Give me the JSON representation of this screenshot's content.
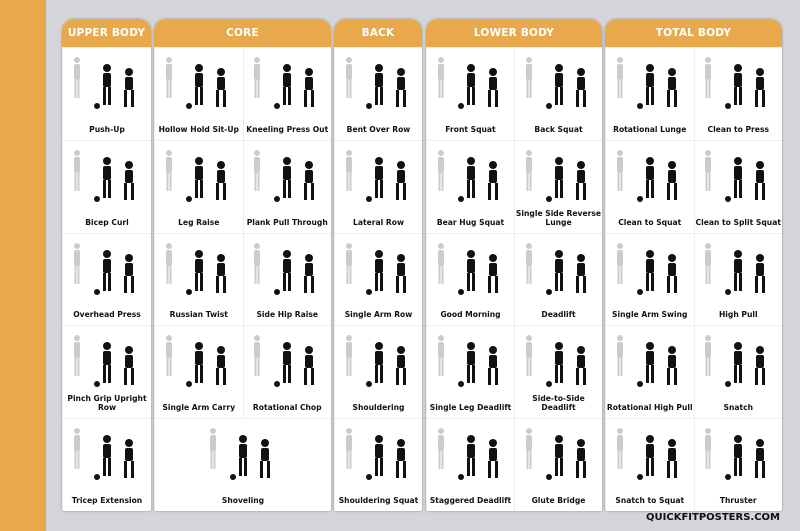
{
  "brand": "QUICKFITPOSTERS.COM",
  "colors": {
    "accent": "#e8a94c",
    "background": "#d4d5d9"
  },
  "sections": [
    {
      "title": "UPPER BODY",
      "cols": 1,
      "exercises": [
        "Push-Up",
        "Bicep Curl",
        "Overhead Press",
        "Pinch Grip Upright Row",
        "Tricep Extension"
      ]
    },
    {
      "title": "CORE",
      "cols": 2,
      "exercises": [
        "Hollow Hold Sit-Up",
        "Kneeling Press Out",
        "Leg Raise",
        "Plank Pull Through",
        "Russian Twist",
        "Side Hip Raise",
        "Single Arm Carry",
        "Rotational Chop",
        "Shoveling"
      ]
    },
    {
      "title": "BACK",
      "cols": 1,
      "exercises": [
        "Bent Over Row",
        "Lateral Row",
        "Single Arm Row",
        "Shouldering",
        "Shouldering Squat"
      ]
    },
    {
      "title": "LOWER BODY",
      "cols": 2,
      "exercises": [
        "Front Squat",
        "Back Squat",
        "Bear Hug Squat",
        "Single Side Reverse Lunge",
        "Good Morning",
        "Deadlift",
        "Single Leg Deadlift",
        "Side-to-Side Deadlift",
        "Staggered Deadlift",
        "Glute Bridge"
      ]
    },
    {
      "title": "TOTAL BODY",
      "cols": 2,
      "exercises": [
        "Rotational Lunge",
        "Clean to Press",
        "Clean to Squat",
        "Clean to Split Squat",
        "Single Arm Swing",
        "High Pull",
        "Rotational High Pull",
        "Snatch",
        "Snatch to Squat",
        "Thruster"
      ]
    }
  ]
}
